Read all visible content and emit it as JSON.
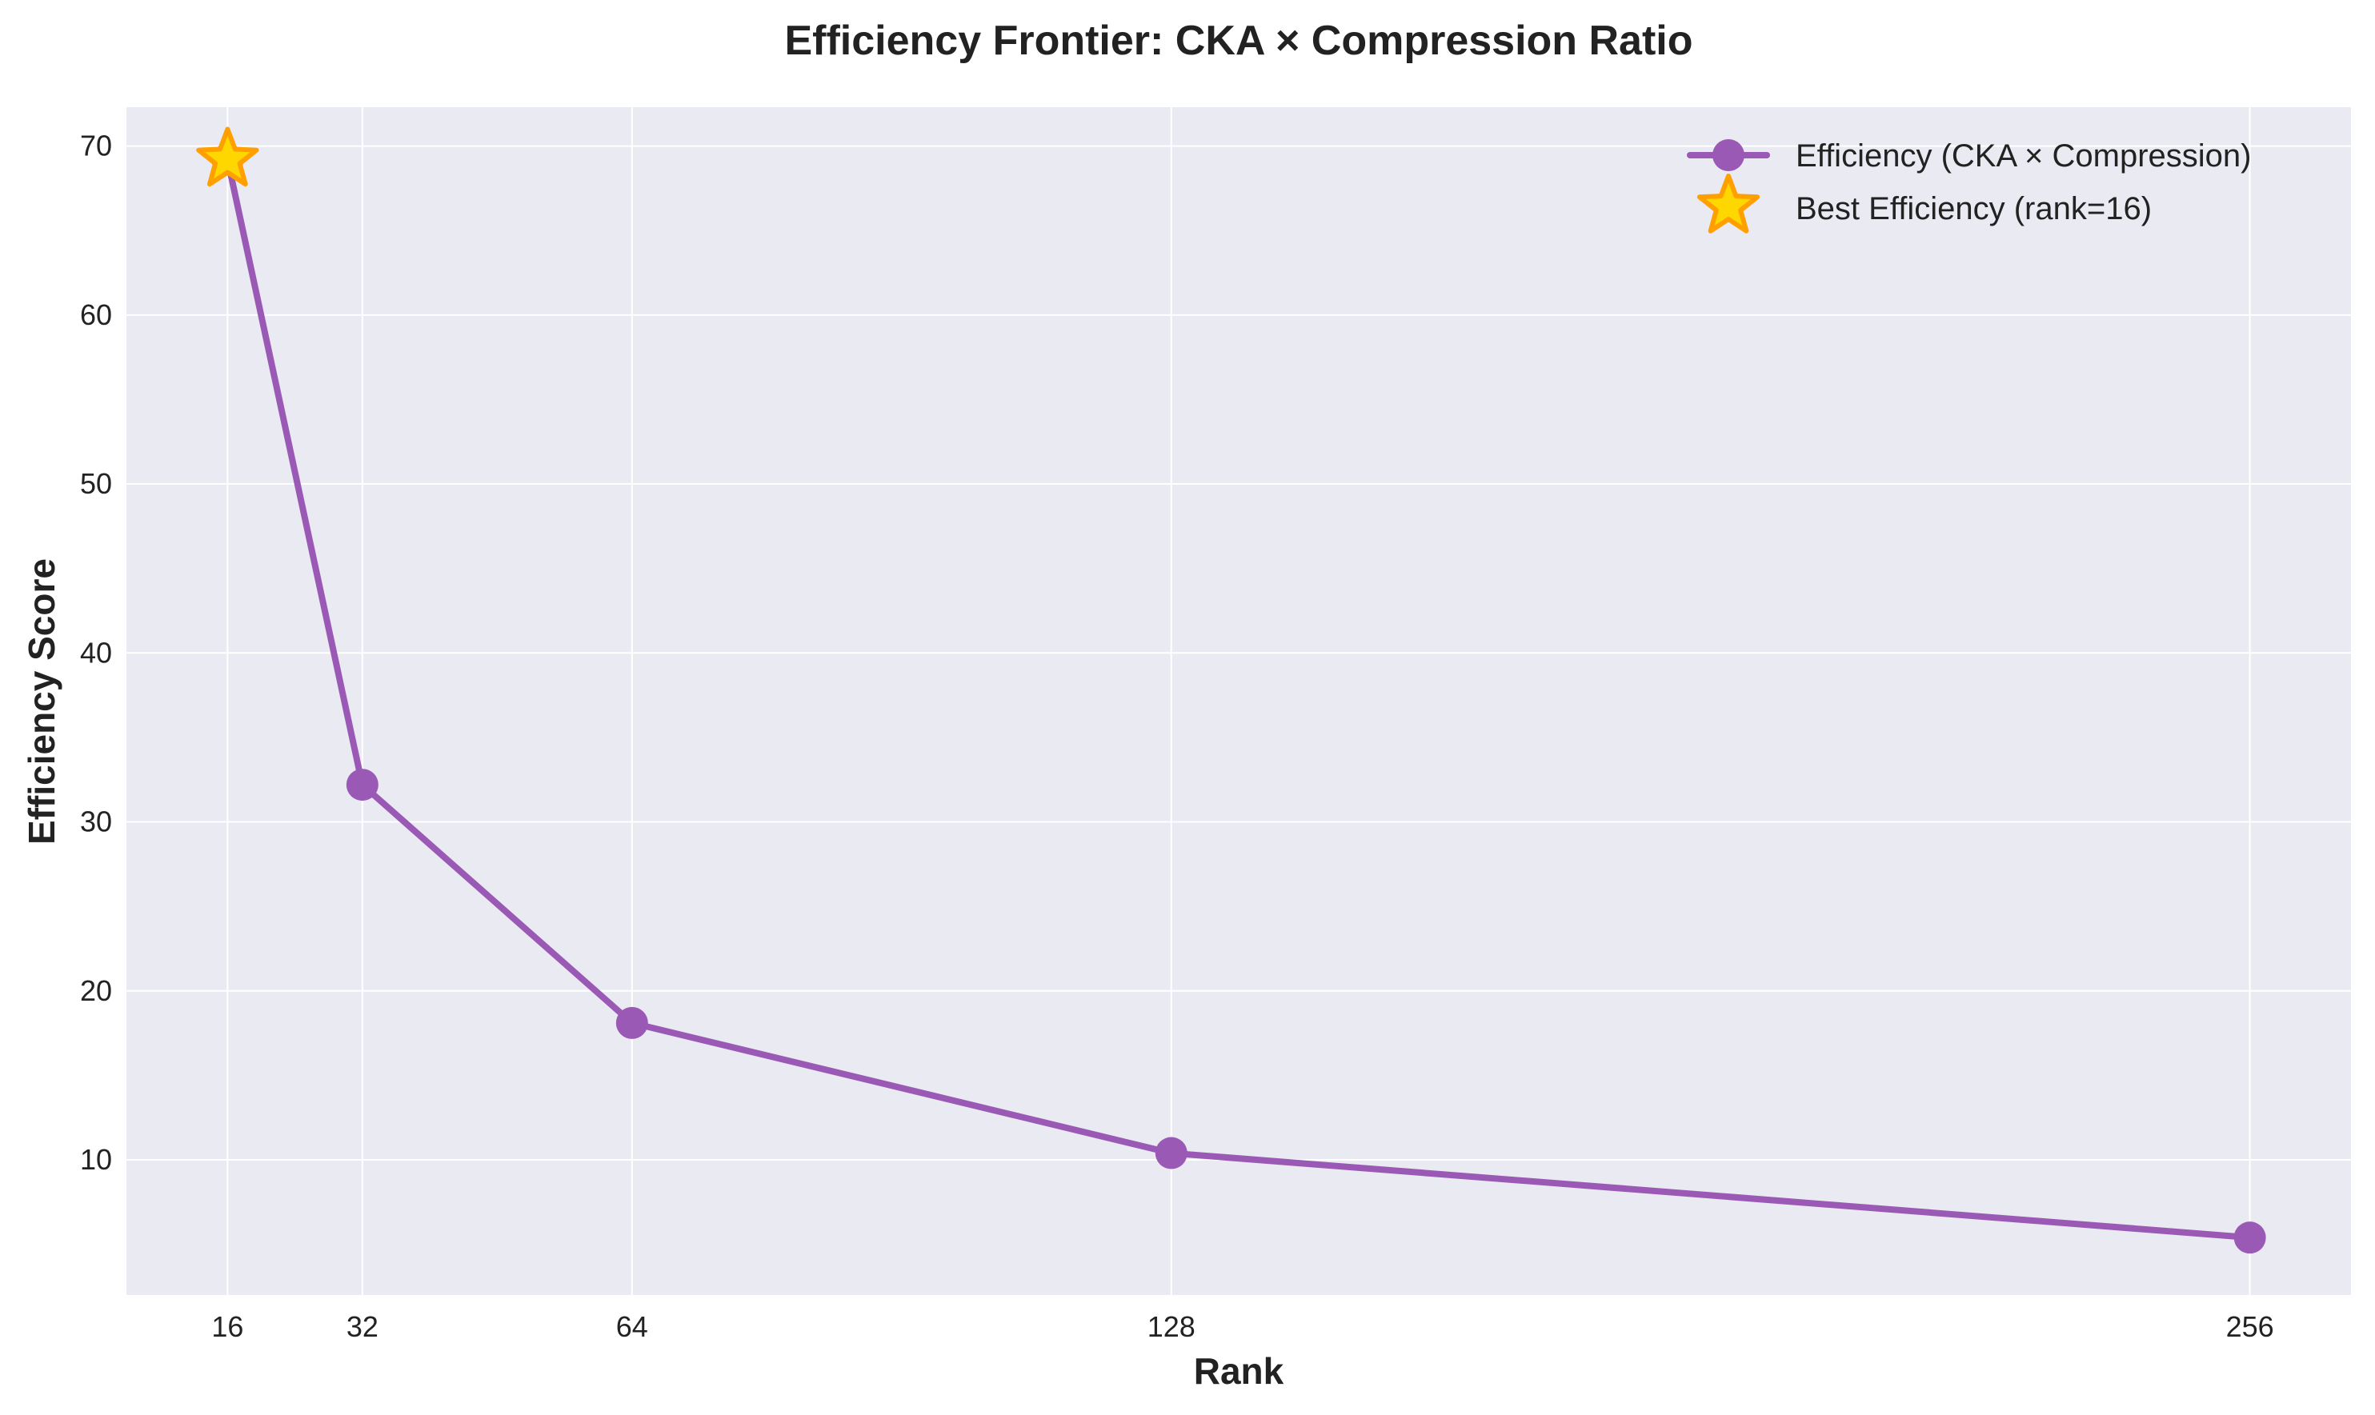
{
  "chart_data": {
    "type": "line",
    "title": "Efficiency Frontier: CKA × Compression Ratio",
    "xlabel": "Rank",
    "ylabel": "Efficiency Score",
    "x_ticks": [
      16,
      32,
      64,
      128,
      256
    ],
    "y_ticks": [
      10,
      20,
      30,
      40,
      50,
      60,
      70
    ],
    "xlim": [
      4,
      268
    ],
    "ylim": [
      2,
      72.3
    ],
    "grid": true,
    "legend_position": "top-right",
    "series": [
      {
        "name": "Efficiency (CKA × Compression)",
        "x": [
          16,
          32,
          64,
          128,
          256
        ],
        "y": [
          69.2,
          32.2,
          18.1,
          10.4,
          5.4
        ],
        "color": "#9b59b6",
        "marker": "circle"
      },
      {
        "name": "Best Efficiency (rank=16)",
        "x": [
          16
        ],
        "y": [
          69.2
        ],
        "color": "#ffd700",
        "edge_color": "#ff9f00",
        "marker": "star"
      }
    ]
  }
}
